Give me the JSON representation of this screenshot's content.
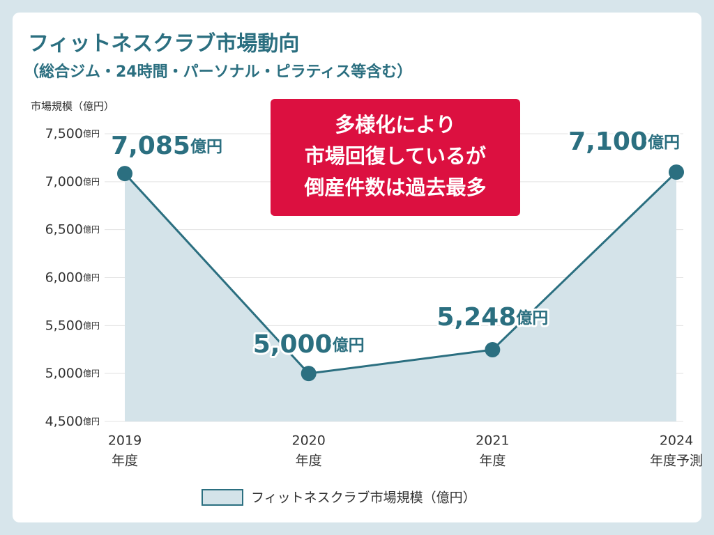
{
  "chart_data": {
    "type": "area",
    "title": "フィットネスクラブ市場動向",
    "subtitle": "（総合ジム・24時間・パーソナル・ピラティス等含む）",
    "y_axis_label": "市場規模（億円）",
    "categories": [
      "2019",
      "2020",
      "2021",
      "2024"
    ],
    "category_sublabels": [
      "年度",
      "年度",
      "年度",
      "年度予測"
    ],
    "series": [
      {
        "name": "フィットネスクラブ市場規模（億円）",
        "color": "#2b6f80",
        "fill": "#d4e3e9",
        "values": [
          7085,
          5000,
          5248,
          7100
        ],
        "value_labels": [
          "7,085",
          "5,000",
          "5,248",
          "7,100"
        ]
      }
    ],
    "value_unit": "億円",
    "ylim": [
      4500,
      7500
    ],
    "yticks": [
      {
        "value": 4500,
        "label": "4,500"
      },
      {
        "value": 5000,
        "label": "5,000"
      },
      {
        "value": 5500,
        "label": "5,500"
      },
      {
        "value": 6000,
        "label": "6,000"
      },
      {
        "value": 6500,
        "label": "6,500"
      },
      {
        "value": 7000,
        "label": "7,000"
      },
      {
        "value": 7500,
        "label": "7,500"
      }
    ],
    "grid": true,
    "annotation": [
      "多様化により",
      "市場回復しているが",
      "倒産件数は過去最多"
    ],
    "annotation_color": "#dc1040"
  }
}
